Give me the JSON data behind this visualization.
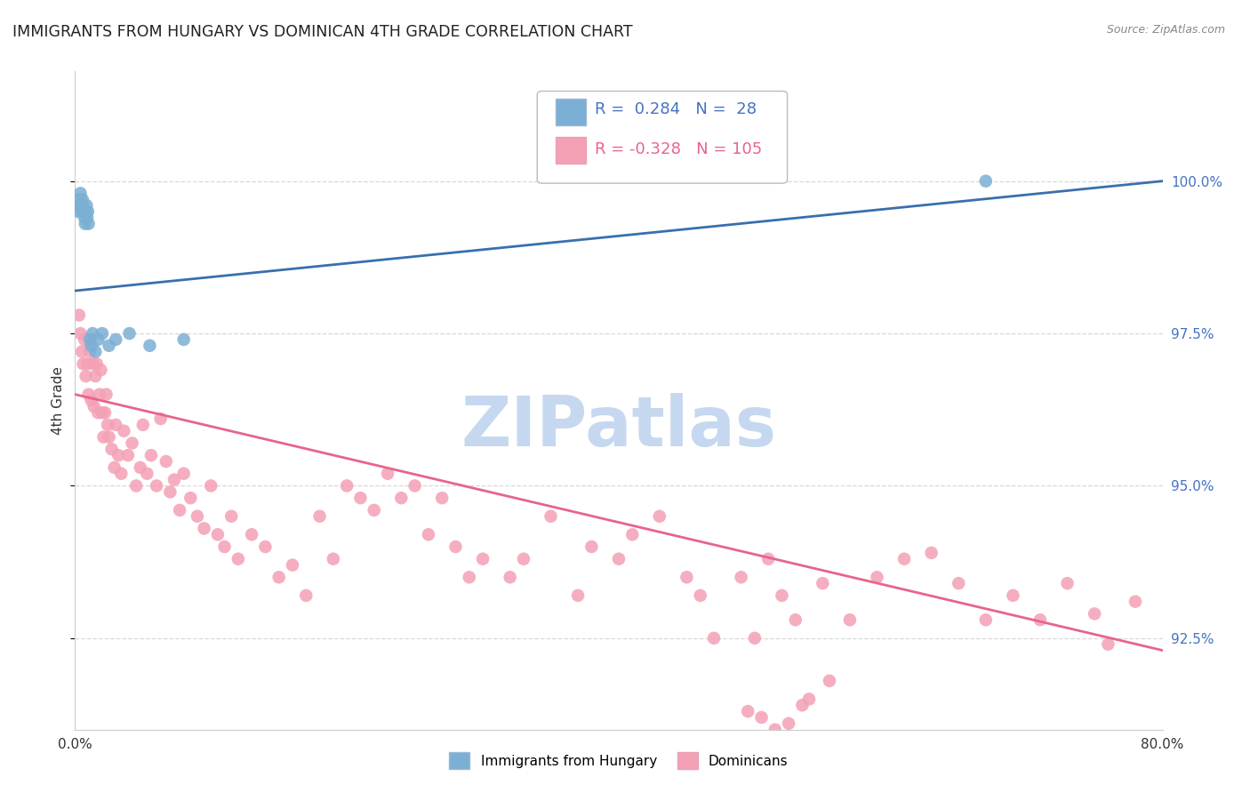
{
  "title": "IMMIGRANTS FROM HUNGARY VS DOMINICAN 4TH GRADE CORRELATION CHART",
  "source": "Source: ZipAtlas.com",
  "ylabel": "4th Grade",
  "xlim": [
    0.0,
    80.0
  ],
  "ylim": [
    91.0,
    101.8
  ],
  "ytick_values": [
    92.5,
    95.0,
    97.5,
    100.0
  ],
  "hungary_R": 0.284,
  "hungary_N": 28,
  "dominican_R": -0.328,
  "dominican_N": 105,
  "hungary_color": "#7bafd4",
  "dominican_color": "#f4a0b5",
  "hungary_line_color": "#3a6fad",
  "dominican_line_color": "#e8648c",
  "watermark": "ZIPatlas",
  "watermark_color": "#c5d8f0",
  "background_color": "#ffffff",
  "grid_color": "#d8d8d8",
  "hungary_x": [
    0.2,
    0.3,
    0.35,
    0.4,
    0.45,
    0.5,
    0.55,
    0.6,
    0.65,
    0.7,
    0.75,
    0.8,
    0.85,
    0.9,
    0.95,
    1.0,
    1.1,
    1.2,
    1.3,
    1.5,
    1.7,
    2.0,
    2.5,
    3.0,
    4.0,
    5.5,
    8.0,
    67.0
  ],
  "hungary_y": [
    99.5,
    99.6,
    99.7,
    99.8,
    99.6,
    99.5,
    99.7,
    99.6,
    99.5,
    99.4,
    99.3,
    99.5,
    99.6,
    99.4,
    99.5,
    99.3,
    97.4,
    97.3,
    97.5,
    97.2,
    97.4,
    97.5,
    97.3,
    97.4,
    97.5,
    97.3,
    97.4,
    100.0
  ],
  "dominican_x": [
    0.3,
    0.4,
    0.5,
    0.6,
    0.7,
    0.8,
    0.9,
    1.0,
    1.1,
    1.2,
    1.3,
    1.4,
    1.5,
    1.6,
    1.7,
    1.8,
    1.9,
    2.0,
    2.1,
    2.2,
    2.3,
    2.4,
    2.5,
    2.7,
    2.9,
    3.0,
    3.2,
    3.4,
    3.6,
    3.9,
    4.2,
    4.5,
    4.8,
    5.0,
    5.3,
    5.6,
    6.0,
    6.3,
    6.7,
    7.0,
    7.3,
    7.7,
    8.0,
    8.5,
    9.0,
    9.5,
    10.0,
    10.5,
    11.0,
    11.5,
    12.0,
    13.0,
    14.0,
    15.0,
    16.0,
    17.0,
    18.0,
    19.0,
    20.0,
    21.0,
    22.0,
    23.0,
    24.0,
    25.0,
    26.0,
    27.0,
    28.0,
    29.0,
    30.0,
    32.0,
    33.0,
    35.0,
    37.0,
    38.0,
    40.0,
    41.0,
    43.0,
    45.0,
    46.0,
    47.0,
    49.0,
    50.0,
    51.0,
    52.0,
    53.0,
    55.0,
    57.0,
    59.0,
    61.0,
    63.0,
    65.0,
    67.0,
    69.0,
    71.0,
    73.0,
    75.0,
    76.0,
    78.0,
    49.5,
    50.5,
    51.5,
    52.5,
    53.5,
    54.0,
    55.5
  ],
  "dominican_y": [
    97.8,
    97.5,
    97.2,
    97.0,
    97.4,
    96.8,
    97.0,
    96.5,
    97.2,
    96.4,
    97.0,
    96.3,
    96.8,
    97.0,
    96.2,
    96.5,
    96.9,
    96.2,
    95.8,
    96.2,
    96.5,
    96.0,
    95.8,
    95.6,
    95.3,
    96.0,
    95.5,
    95.2,
    95.9,
    95.5,
    95.7,
    95.0,
    95.3,
    96.0,
    95.2,
    95.5,
    95.0,
    96.1,
    95.4,
    94.9,
    95.1,
    94.6,
    95.2,
    94.8,
    94.5,
    94.3,
    95.0,
    94.2,
    94.0,
    94.5,
    93.8,
    94.2,
    94.0,
    93.5,
    93.7,
    93.2,
    94.5,
    93.8,
    95.0,
    94.8,
    94.6,
    95.2,
    94.8,
    95.0,
    94.2,
    94.8,
    94.0,
    93.5,
    93.8,
    93.5,
    93.8,
    94.5,
    93.2,
    94.0,
    93.8,
    94.2,
    94.5,
    93.5,
    93.2,
    92.5,
    93.5,
    92.5,
    93.8,
    93.2,
    92.8,
    93.4,
    92.8,
    93.5,
    93.8,
    93.9,
    93.4,
    92.8,
    93.2,
    92.8,
    93.4,
    92.9,
    92.4,
    93.1,
    91.3,
    91.2,
    91.0,
    91.1,
    91.4,
    91.5,
    91.8
  ],
  "hun_trendline_x": [
    0.0,
    80.0
  ],
  "hun_trendline_y": [
    98.2,
    100.0
  ],
  "dom_trendline_x": [
    0.0,
    80.0
  ],
  "dom_trendline_y": [
    96.5,
    92.3
  ]
}
